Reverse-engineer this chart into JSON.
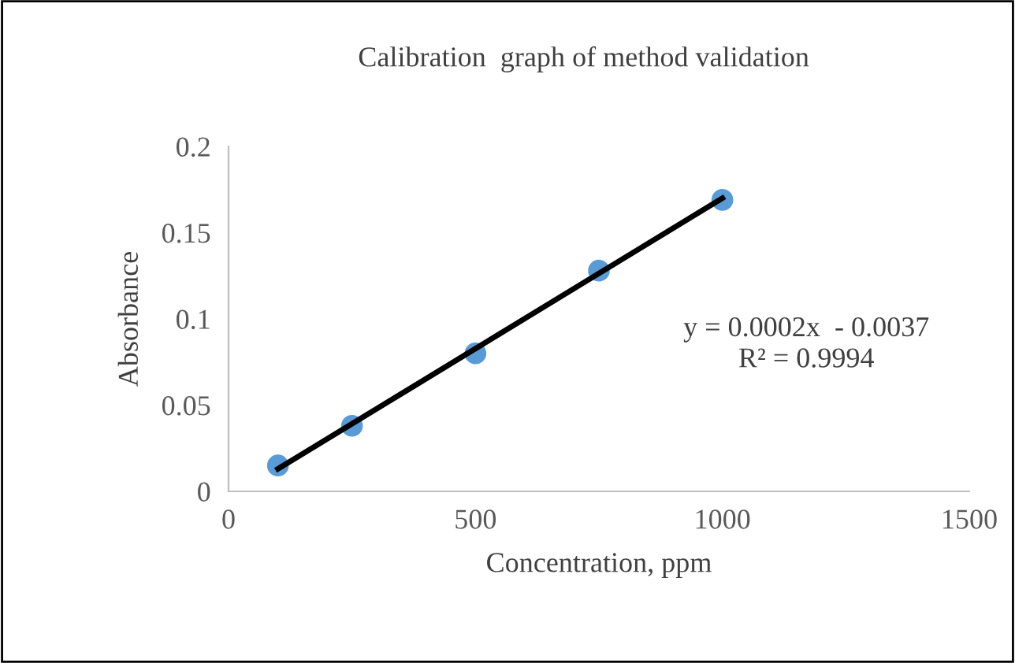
{
  "chart_data": {
    "type": "scatter",
    "title": "Calibration  graph of method validation",
    "xlabel": "Concentration, ppm",
    "ylabel": "Absorbance",
    "series": [
      {
        "color": "#5b9bd5",
        "x": [
          100,
          250,
          500,
          750,
          1000
        ],
        "values": [
          0.015,
          0.038,
          0.08,
          0.128,
          0.169
        ],
        "marker": "circle"
      },
      {
        "type": "line",
        "color": "#000000",
        "x": [
          100,
          1000
        ],
        "values": [
          0.013,
          0.17
        ],
        "line_style": "solid"
      }
    ],
    "annotations": [
      "y = 0.0002x  - 0.0037",
      "R² = 0.9994"
    ],
    "xlim": [
      0,
      1500
    ],
    "xticks": [
      0,
      500,
      1000,
      1500
    ],
    "ylim": [
      0,
      0.2
    ],
    "yticks": [
      0,
      0.05,
      0.1,
      0.15,
      0.2
    ],
    "grid": false,
    "legend": false
  }
}
